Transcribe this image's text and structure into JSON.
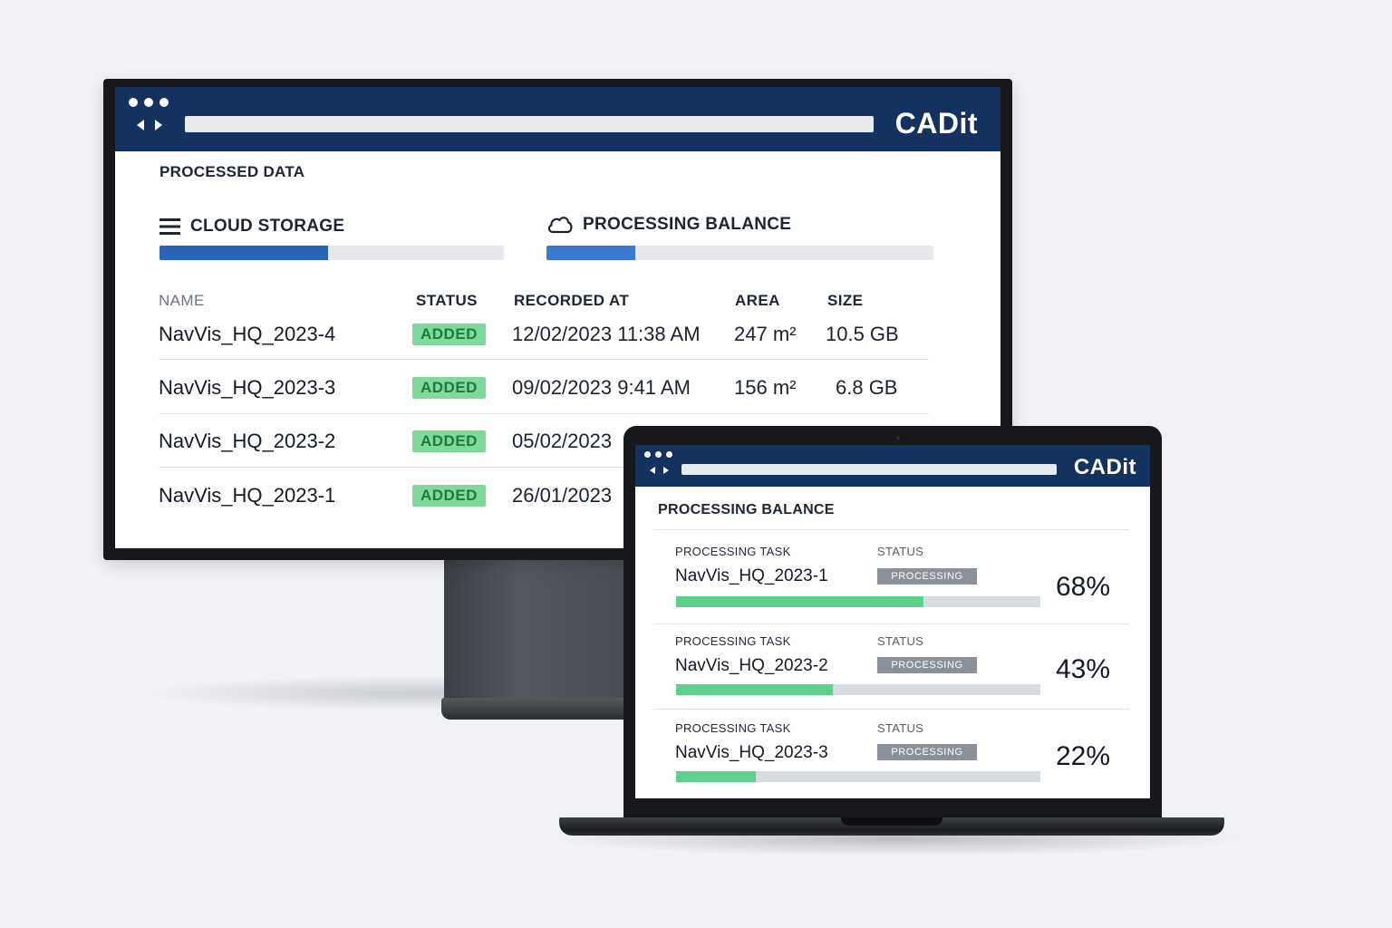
{
  "colors": {
    "titlebar": "#143260",
    "storage_fill": "#2864b4",
    "balance_fill": "#3a7ad0",
    "badge_added_bg": "#7fd99c",
    "badge_added_text": "#1f7a3e",
    "task_fill": "#5fcf8c",
    "badge_processing_bg": "#8a9099"
  },
  "monitor": {
    "brand": "CADit",
    "section_title": "PROCESSED DATA",
    "cloud_storage": {
      "label": "CLOUD STORAGE",
      "icon": "menu-icon",
      "fill": 0.49
    },
    "processing_balance": {
      "label": "PROCESSING BALANCE",
      "icon": "cloud-icon",
      "fill": 0.23
    },
    "columns": {
      "name": "NAME",
      "status": "STATUS",
      "recorded_at": "RECORDED AT",
      "area": "AREA",
      "size": "SIZE"
    },
    "rows": [
      {
        "name": "NavVis_HQ_2023-4",
        "status": "ADDED",
        "recorded_at": "12/02/2023 11:38 AM",
        "area": "247 m²",
        "size": "10.5 GB"
      },
      {
        "name": "NavVis_HQ_2023-3",
        "status": "ADDED",
        "recorded_at": "09/02/2023 9:41 AM",
        "area": "156 m²",
        "size": "6.8 GB"
      },
      {
        "name": "NavVis_HQ_2023-2",
        "status": "ADDED",
        "recorded_at": "05/02/2023"
      },
      {
        "name": "NavVis_HQ_2023-1",
        "status": "ADDED",
        "recorded_at": "26/01/2023"
      }
    ]
  },
  "laptop": {
    "brand": "CADit",
    "section_title": "PROCESSING BALANCE",
    "tasks": [
      {
        "task_label": "PROCESSING TASK",
        "status_label": "STATUS",
        "name": "NavVis_HQ_2023-1",
        "status": "PROCESSING",
        "percent": "68%",
        "fill": 0.68
      },
      {
        "task_label": "PROCESSING TASK",
        "status_label": "STATUS",
        "name": "NavVis_HQ_2023-2",
        "status": "PROCESSING",
        "percent": "43%",
        "fill": 0.43
      },
      {
        "task_label": "PROCESSING TASK",
        "status_label": "STATUS",
        "name": "NavVis_HQ_2023-3",
        "status": "PROCESSING",
        "percent": "22%",
        "fill": 0.22
      }
    ]
  }
}
